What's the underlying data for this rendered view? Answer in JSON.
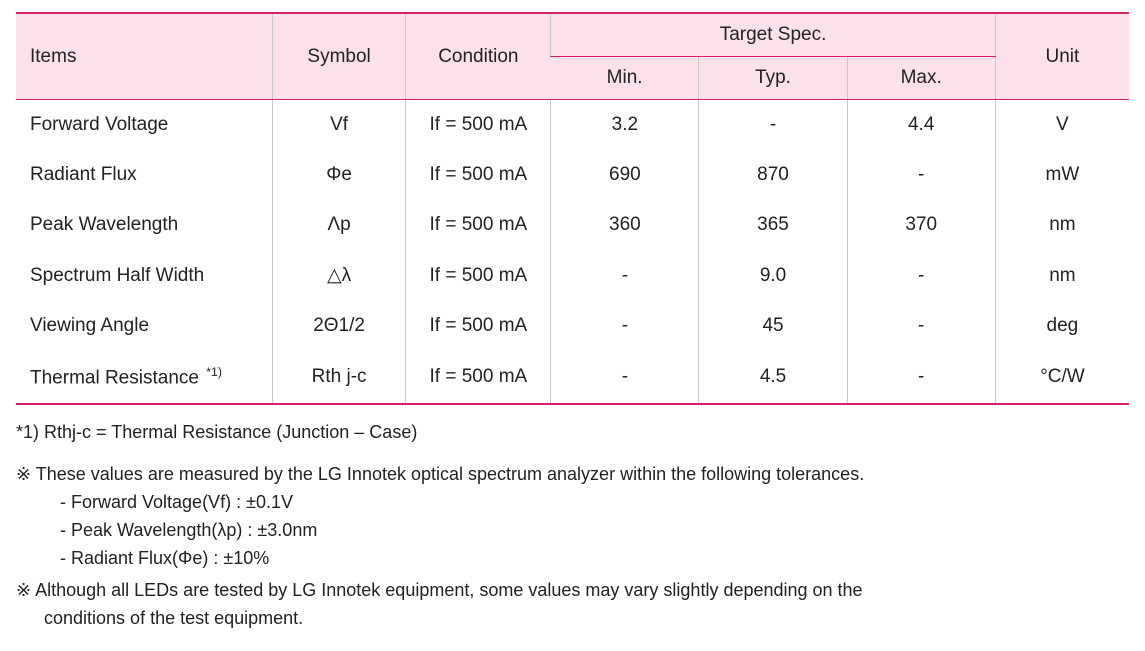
{
  "table": {
    "header": {
      "items": "Items",
      "symbol": "Symbol",
      "condition": "Condition",
      "target_spec": "Target Spec.",
      "min": "Min.",
      "typ": "Typ.",
      "max": "Max.",
      "unit": "Unit"
    },
    "rows": [
      {
        "item": "Forward Voltage",
        "sup": "",
        "symbol": "Vf",
        "condition": "If = 500 mA",
        "min": "3.2",
        "typ": "-",
        "max": "4.4",
        "unit": "V"
      },
      {
        "item": "Radiant Flux",
        "sup": "",
        "symbol": "Φe",
        "condition": "If = 500 mA",
        "min": "690",
        "typ": "870",
        "max": "-",
        "unit": "mW"
      },
      {
        "item": "Peak Wavelength",
        "sup": "",
        "symbol": "Λp",
        "condition": "If = 500 mA",
        "min": "360",
        "typ": "365",
        "max": "370",
        "unit": "nm"
      },
      {
        "item": "Spectrum Half Width",
        "sup": "",
        "symbol": "△λ",
        "condition": "If = 500 mA",
        "min": "-",
        "typ": "9.0",
        "max": "-",
        "unit": "nm"
      },
      {
        "item": "Viewing Angle",
        "sup": "",
        "symbol": "2Θ1/2",
        "condition": "If = 500 mA",
        "min": "-",
        "typ": "45",
        "max": "-",
        "unit": "deg"
      },
      {
        "item": "Thermal Resistance",
        "sup": "*1)",
        "symbol": "Rth j-c",
        "condition": "If = 500 mA",
        "min": "-",
        "typ": "4.5",
        "max": "-",
        "unit": "°C/W"
      }
    ]
  },
  "footnotes": {
    "f1": "*1) Rthj-c = Thermal Resistance (Junction – Case)",
    "n1": "※ These values are measured by the LG Innotek optical spectrum analyzer within the following tolerances.",
    "b1": "- Forward Voltage(Vf) : ±0.1V",
    "b2": "- Peak Wavelength(λp) : ±3.0nm",
    "b3": "- Radiant Flux(Φe) : ±10%",
    "n2a": "※ Although all LEDs are tested by LG Innotek equipment, some values may vary slightly depending on the",
    "n2b": "conditions of the test equipment."
  },
  "colors": {
    "header_bg": "#fbe2e9",
    "border_pink": "#d6226b",
    "border_gray": "#c9c9c9",
    "text": "#222222",
    "background": "#ffffff"
  }
}
